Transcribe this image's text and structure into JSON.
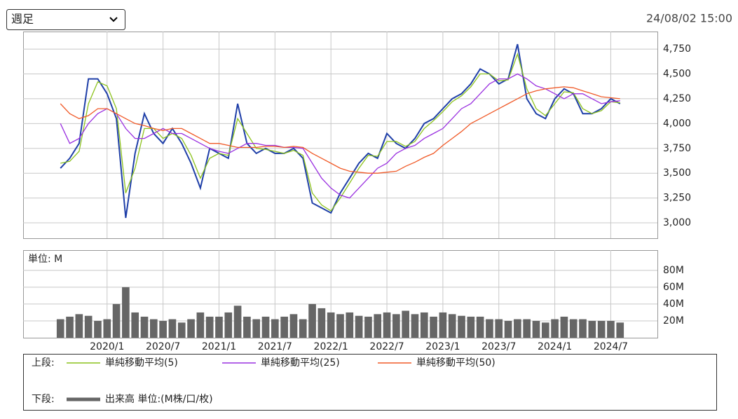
{
  "header": {
    "period": "週足",
    "timestamp": "24/08/02 15:00"
  },
  "legend": {
    "upper": "上段:",
    "lower": "下段:"
  },
  "chart_data": [
    {
      "type": "line",
      "x": [
        "2019/8",
        "2019/9",
        "2019/10",
        "2019/11",
        "2019/12",
        "2020/1",
        "2020/2",
        "2020/3",
        "2020/4",
        "2020/5",
        "2020/6",
        "2020/7",
        "2020/8",
        "2020/9",
        "2020/10",
        "2020/11",
        "2020/12",
        "2021/1",
        "2021/2",
        "2021/3",
        "2021/4",
        "2021/5",
        "2021/6",
        "2021/7",
        "2021/8",
        "2021/9",
        "2021/10",
        "2021/11",
        "2021/12",
        "2022/1",
        "2022/2",
        "2022/3",
        "2022/4",
        "2022/5",
        "2022/6",
        "2022/7",
        "2022/8",
        "2022/9",
        "2022/10",
        "2022/11",
        "2022/12",
        "2023/1",
        "2023/2",
        "2023/3",
        "2023/4",
        "2023/5",
        "2023/6",
        "2023/7",
        "2023/8",
        "2023/9",
        "2023/10",
        "2023/11",
        "2023/12",
        "2024/1",
        "2024/2",
        "2024/3",
        "2024/4",
        "2024/5",
        "2024/6",
        "2024/7",
        "2024/8"
      ],
      "series": [
        {
          "color": "#1f3fa8",
          "values": [
            3550,
            3650,
            3800,
            4450,
            4450,
            4300,
            4050,
            3050,
            3700,
            4100,
            3900,
            3800,
            3950,
            3800,
            3600,
            3350,
            3750,
            3700,
            3650,
            4200,
            3800,
            3700,
            3750,
            3700,
            3700,
            3750,
            3650,
            3200,
            3150,
            3100,
            3300,
            3450,
            3600,
            3700,
            3650,
            3900,
            3800,
            3750,
            3850,
            4000,
            4050,
            4150,
            4250,
            4300,
            4400,
            4550,
            4500,
            4400,
            4450,
            4800,
            4250,
            4100,
            4050,
            4250,
            4350,
            4300,
            4100,
            4100,
            4150,
            4250,
            4200
          ]
        },
        {
          "name": "単純移動平均(5)",
          "color": "#8cc21c",
          "values": [
            3600,
            3620,
            3720,
            4200,
            4420,
            4380,
            4150,
            3300,
            3550,
            3950,
            3950,
            3850,
            3900,
            3850,
            3680,
            3450,
            3650,
            3700,
            3680,
            4050,
            3900,
            3750,
            3740,
            3720,
            3700,
            3730,
            3680,
            3300,
            3180,
            3120,
            3250,
            3400,
            3550,
            3680,
            3670,
            3820,
            3820,
            3770,
            3820,
            3950,
            4030,
            4120,
            4220,
            4280,
            4370,
            4500,
            4500,
            4430,
            4440,
            4700,
            4350,
            4150,
            4080,
            4200,
            4320,
            4310,
            4150,
            4100,
            4130,
            4220,
            4210
          ]
        },
        {
          "name": "単純移動平均(25)",
          "color": "#9a30e0",
          "values": [
            4000,
            3800,
            3850,
            4000,
            4100,
            4150,
            4100,
            3950,
            3850,
            3850,
            3900,
            3950,
            3900,
            3900,
            3850,
            3800,
            3750,
            3720,
            3700,
            3750,
            3800,
            3800,
            3780,
            3780,
            3760,
            3760,
            3750,
            3600,
            3450,
            3350,
            3280,
            3250,
            3350,
            3450,
            3550,
            3600,
            3700,
            3750,
            3780,
            3850,
            3900,
            3950,
            4050,
            4150,
            4200,
            4300,
            4400,
            4450,
            4450,
            4500,
            4450,
            4380,
            4350,
            4300,
            4250,
            4300,
            4300,
            4250,
            4200,
            4220,
            4230
          ]
        },
        {
          "name": "単純移動平均(50)",
          "color": "#f05a28",
          "values": [
            4200,
            4100,
            4050,
            4080,
            4150,
            4150,
            4100,
            4050,
            4000,
            3980,
            3950,
            3930,
            3950,
            3950,
            3900,
            3850,
            3800,
            3800,
            3780,
            3760,
            3760,
            3760,
            3770,
            3770,
            3760,
            3770,
            3760,
            3700,
            3650,
            3600,
            3550,
            3520,
            3510,
            3500,
            3500,
            3510,
            3520,
            3570,
            3610,
            3660,
            3700,
            3780,
            3850,
            3920,
            4000,
            4050,
            4100,
            4150,
            4200,
            4250,
            4300,
            4330,
            4350,
            4360,
            4370,
            4360,
            4330,
            4300,
            4270,
            4260,
            4250
          ]
        }
      ],
      "xlim": [
        "2019/4",
        "2024/12"
      ],
      "xticks": [
        "2020/1",
        "2020/7",
        "2021/1",
        "2021/7",
        "2022/1",
        "2022/7",
        "2023/1",
        "2023/7",
        "2024/1",
        "2024/7"
      ],
      "ylim": [
        2845,
        4927
      ],
      "yticks": [
        {
          "value": 3000,
          "label": "3,000"
        },
        {
          "value": 3250,
          "label": "3,250"
        },
        {
          "value": 3500,
          "label": "3,500"
        },
        {
          "value": 3750,
          "label": "3,750"
        },
        {
          "value": 4000,
          "label": "4,000"
        },
        {
          "value": 4250,
          "label": "4,250"
        },
        {
          "value": 4500,
          "label": "4,500"
        },
        {
          "value": 4750,
          "label": "4,750"
        }
      ],
      "grid": true
    },
    {
      "type": "bar",
      "unit_label": "単位: M",
      "x": [
        "2019/8",
        "2019/9",
        "2019/10",
        "2019/11",
        "2019/12",
        "2020/1",
        "2020/2",
        "2020/3",
        "2020/4",
        "2020/5",
        "2020/6",
        "2020/7",
        "2020/8",
        "2020/9",
        "2020/10",
        "2020/11",
        "2020/12",
        "2021/1",
        "2021/2",
        "2021/3",
        "2021/4",
        "2021/5",
        "2021/6",
        "2021/7",
        "2021/8",
        "2021/9",
        "2021/10",
        "2021/11",
        "2021/12",
        "2022/1",
        "2022/2",
        "2022/3",
        "2022/4",
        "2022/5",
        "2022/6",
        "2022/7",
        "2022/8",
        "2022/9",
        "2022/10",
        "2022/11",
        "2022/12",
        "2023/1",
        "2023/2",
        "2023/3",
        "2023/4",
        "2023/5",
        "2023/6",
        "2023/7",
        "2023/8",
        "2023/9",
        "2023/10",
        "2023/11",
        "2023/12",
        "2024/1",
        "2024/2",
        "2024/3",
        "2024/4",
        "2024/5",
        "2024/6",
        "2024/7",
        "2024/8"
      ],
      "series": [
        {
          "name": "出来高 単位:(M株/口/枚)",
          "color": "#666666",
          "values": [
            22,
            25,
            28,
            26,
            20,
            22,
            40,
            60,
            30,
            25,
            22,
            20,
            22,
            18,
            22,
            30,
            25,
            25,
            30,
            38,
            25,
            22,
            25,
            22,
            25,
            28,
            22,
            40,
            35,
            30,
            28,
            30,
            26,
            25,
            28,
            30,
            28,
            32,
            28,
            30,
            25,
            30,
            28,
            26,
            25,
            25,
            22,
            22,
            20,
            22,
            22,
            20,
            18,
            22,
            25,
            22,
            22,
            20,
            20,
            20,
            18
          ]
        }
      ],
      "xlim": [
        "2019/4",
        "2024/12"
      ],
      "xticks": [
        "2020/1",
        "2020/7",
        "2021/1",
        "2021/7",
        "2022/1",
        "2022/7",
        "2023/1",
        "2023/7",
        "2024/1",
        "2024/7"
      ],
      "ylim": [
        0,
        104
      ],
      "yticks": [
        {
          "value": 20,
          "label": "20M"
        },
        {
          "value": 40,
          "label": "40M"
        },
        {
          "value": 60,
          "label": "60M"
        },
        {
          "value": 80,
          "label": "80M"
        }
      ],
      "grid": true
    }
  ]
}
